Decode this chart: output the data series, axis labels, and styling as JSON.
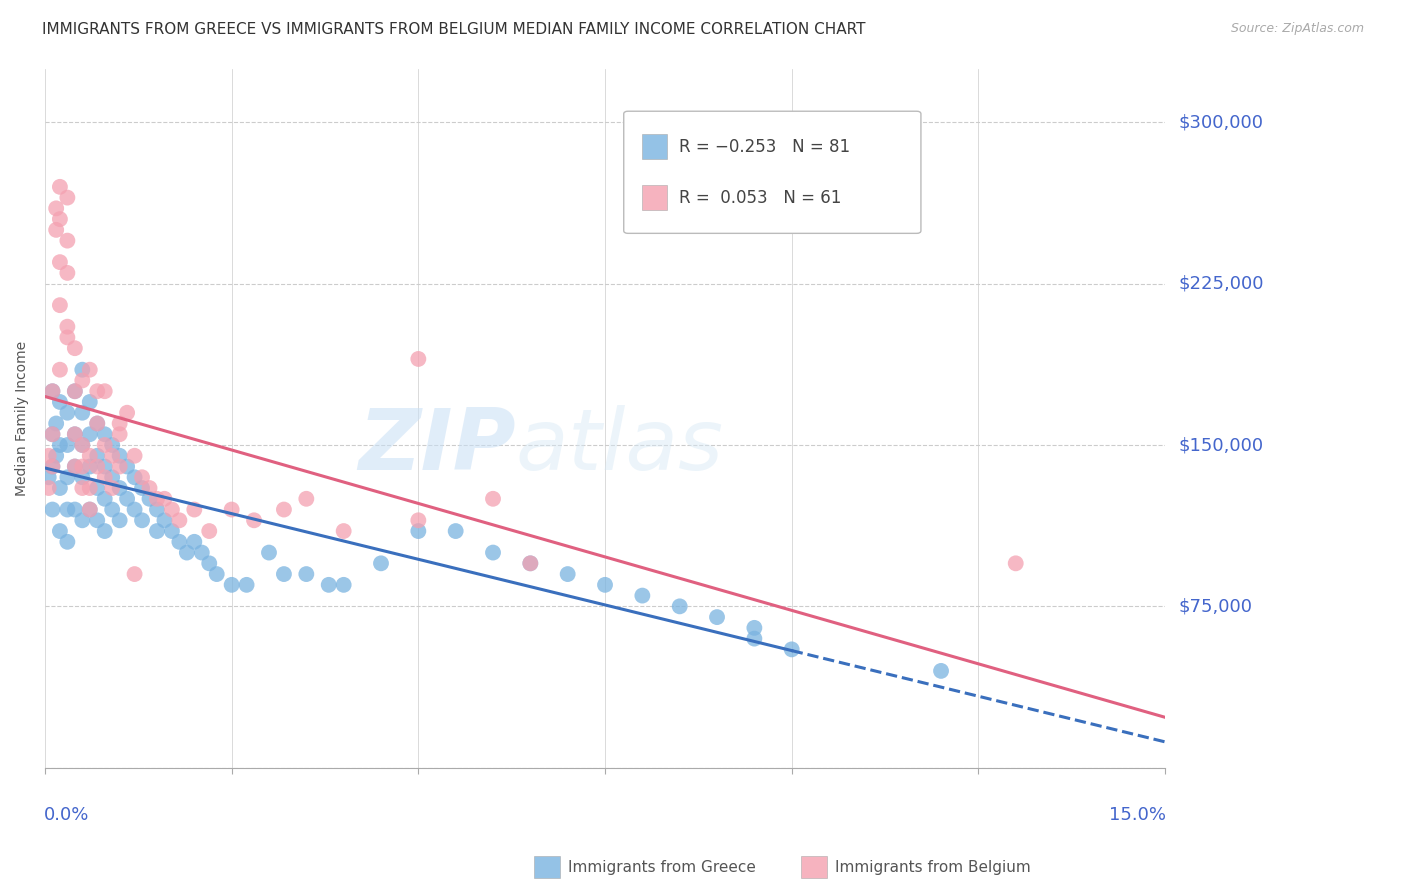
{
  "title": "IMMIGRANTS FROM GREECE VS IMMIGRANTS FROM BELGIUM MEDIAN FAMILY INCOME CORRELATION CHART",
  "source": "Source: ZipAtlas.com",
  "ylabel": "Median Family Income",
  "xlim": [
    0.0,
    0.15
  ],
  "ylim": [
    0,
    325000
  ],
  "yticks": [
    0,
    75000,
    150000,
    225000,
    300000
  ],
  "ytick_labels": [
    "",
    "$75,000",
    "$150,000",
    "$225,000",
    "$300,000"
  ],
  "background_color": "#ffffff",
  "grid_color": "#cccccc",
  "watermark": "ZIPatlas",
  "greece_color": "#7ab3e0",
  "belgium_color": "#f4a0b0",
  "greece_line_color": "#3a6fbd",
  "belgium_line_color": "#e06080",
  "tick_label_color": "#4466cc",
  "greece_scatter": {
    "x": [
      0.0005,
      0.001,
      0.001,
      0.001,
      0.001,
      0.0015,
      0.0015,
      0.002,
      0.002,
      0.002,
      0.002,
      0.003,
      0.003,
      0.003,
      0.003,
      0.003,
      0.004,
      0.004,
      0.004,
      0.004,
      0.005,
      0.005,
      0.005,
      0.005,
      0.005,
      0.006,
      0.006,
      0.006,
      0.006,
      0.007,
      0.007,
      0.007,
      0.007,
      0.008,
      0.008,
      0.008,
      0.008,
      0.009,
      0.009,
      0.009,
      0.01,
      0.01,
      0.01,
      0.011,
      0.011,
      0.012,
      0.012,
      0.013,
      0.013,
      0.014,
      0.015,
      0.015,
      0.016,
      0.017,
      0.018,
      0.019,
      0.02,
      0.021,
      0.022,
      0.023,
      0.025,
      0.027,
      0.03,
      0.032,
      0.035,
      0.038,
      0.04,
      0.045,
      0.05,
      0.055,
      0.06,
      0.065,
      0.07,
      0.075,
      0.08,
      0.085,
      0.09,
      0.095,
      0.1,
      0.12,
      0.095
    ],
    "y": [
      135000,
      175000,
      155000,
      140000,
      120000,
      160000,
      145000,
      170000,
      150000,
      130000,
      110000,
      165000,
      150000,
      135000,
      120000,
      105000,
      175000,
      155000,
      140000,
      120000,
      185000,
      165000,
      150000,
      135000,
      115000,
      170000,
      155000,
      140000,
      120000,
      160000,
      145000,
      130000,
      115000,
      155000,
      140000,
      125000,
      110000,
      150000,
      135000,
      120000,
      145000,
      130000,
      115000,
      140000,
      125000,
      135000,
      120000,
      130000,
      115000,
      125000,
      120000,
      110000,
      115000,
      110000,
      105000,
      100000,
      105000,
      100000,
      95000,
      90000,
      85000,
      85000,
      100000,
      90000,
      90000,
      85000,
      85000,
      95000,
      110000,
      110000,
      100000,
      95000,
      90000,
      85000,
      80000,
      75000,
      70000,
      65000,
      55000,
      45000,
      60000
    ]
  },
  "belgium_scatter": {
    "x": [
      0.0005,
      0.0005,
      0.001,
      0.001,
      0.001,
      0.0015,
      0.0015,
      0.002,
      0.002,
      0.002,
      0.002,
      0.003,
      0.003,
      0.003,
      0.003,
      0.004,
      0.004,
      0.004,
      0.005,
      0.005,
      0.005,
      0.006,
      0.006,
      0.006,
      0.007,
      0.007,
      0.008,
      0.008,
      0.009,
      0.009,
      0.01,
      0.01,
      0.011,
      0.012,
      0.013,
      0.014,
      0.015,
      0.016,
      0.017,
      0.018,
      0.02,
      0.022,
      0.025,
      0.028,
      0.032,
      0.04,
      0.05,
      0.06,
      0.065,
      0.13,
      0.002,
      0.003,
      0.004,
      0.005,
      0.006,
      0.007,
      0.008,
      0.01,
      0.012,
      0.035,
      0.05
    ],
    "y": [
      145000,
      130000,
      155000,
      175000,
      140000,
      260000,
      250000,
      270000,
      255000,
      235000,
      215000,
      265000,
      245000,
      230000,
      205000,
      175000,
      155000,
      140000,
      150000,
      140000,
      130000,
      145000,
      130000,
      120000,
      160000,
      140000,
      150000,
      135000,
      145000,
      130000,
      155000,
      140000,
      165000,
      145000,
      135000,
      130000,
      125000,
      125000,
      120000,
      115000,
      120000,
      110000,
      120000,
      115000,
      120000,
      110000,
      115000,
      125000,
      95000,
      95000,
      185000,
      200000,
      195000,
      180000,
      185000,
      175000,
      175000,
      160000,
      90000,
      125000,
      190000
    ]
  },
  "title_fontsize": 11,
  "axis_label_fontsize": 10
}
